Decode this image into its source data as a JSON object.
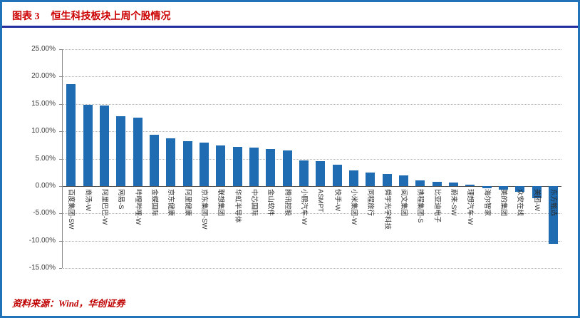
{
  "header": {
    "figure_label": "图表 3",
    "title": "恒生科技板块上周个股情况"
  },
  "footer": {
    "source": "资料来源：Wind，华创证券"
  },
  "colors": {
    "bar": "#1f6cb2",
    "frame_border": "#2173b9",
    "title_divider": "#232f9f",
    "title_red": "#cc0000",
    "source_red": "#c00000"
  },
  "chart_data": {
    "type": "bar",
    "title": "恒生科技板块上周个股情况",
    "categories": [
      "百度集团-SW",
      "商汤-W",
      "阿里巴巴-W",
      "网易-S",
      "哔哩哔哩-W",
      "金蝶国际",
      "京东健康",
      "阿里健康",
      "京东集团-SW",
      "联想集团",
      "华虹半导体",
      "中芯国际",
      "金山软件",
      "腾讯控股",
      "小鹏汽车-W",
      "ASMPT",
      "快手-W",
      "小米集团-W",
      "同程旅行",
      "舜宇光学科技",
      "阅文集团",
      "携程集团-S",
      "比亚迪电子",
      "蔚来-SW",
      "理想汽车-W",
      "海尔智家",
      "美的集团",
      "众安在线",
      "美团-W",
      "东方甄选"
    ],
    "values": [
      18.6,
      14.8,
      14.7,
      12.7,
      12.5,
      9.3,
      8.7,
      8.2,
      7.9,
      7.4,
      7.1,
      7.0,
      6.8,
      6.5,
      4.7,
      4.6,
      3.9,
      2.9,
      2.5,
      2.2,
      2.0,
      1.0,
      0.8,
      0.7,
      0.3,
      -0.4,
      -0.7,
      -1.0,
      -2.2,
      -10.6
    ],
    "xlabel": "",
    "ylabel": "",
    "ylim": [
      -15,
      25
    ],
    "ytick_step": 5,
    "ytick_labels": [
      "25.00%",
      "20.00%",
      "15.00%",
      "10.00%",
      "5.00%",
      "0.00%",
      "-5.00%",
      "-10.00%",
      "-15.00%"
    ],
    "bar_color": "#1f6cb2",
    "grid": "dotted-horizontal",
    "legend": "none"
  }
}
